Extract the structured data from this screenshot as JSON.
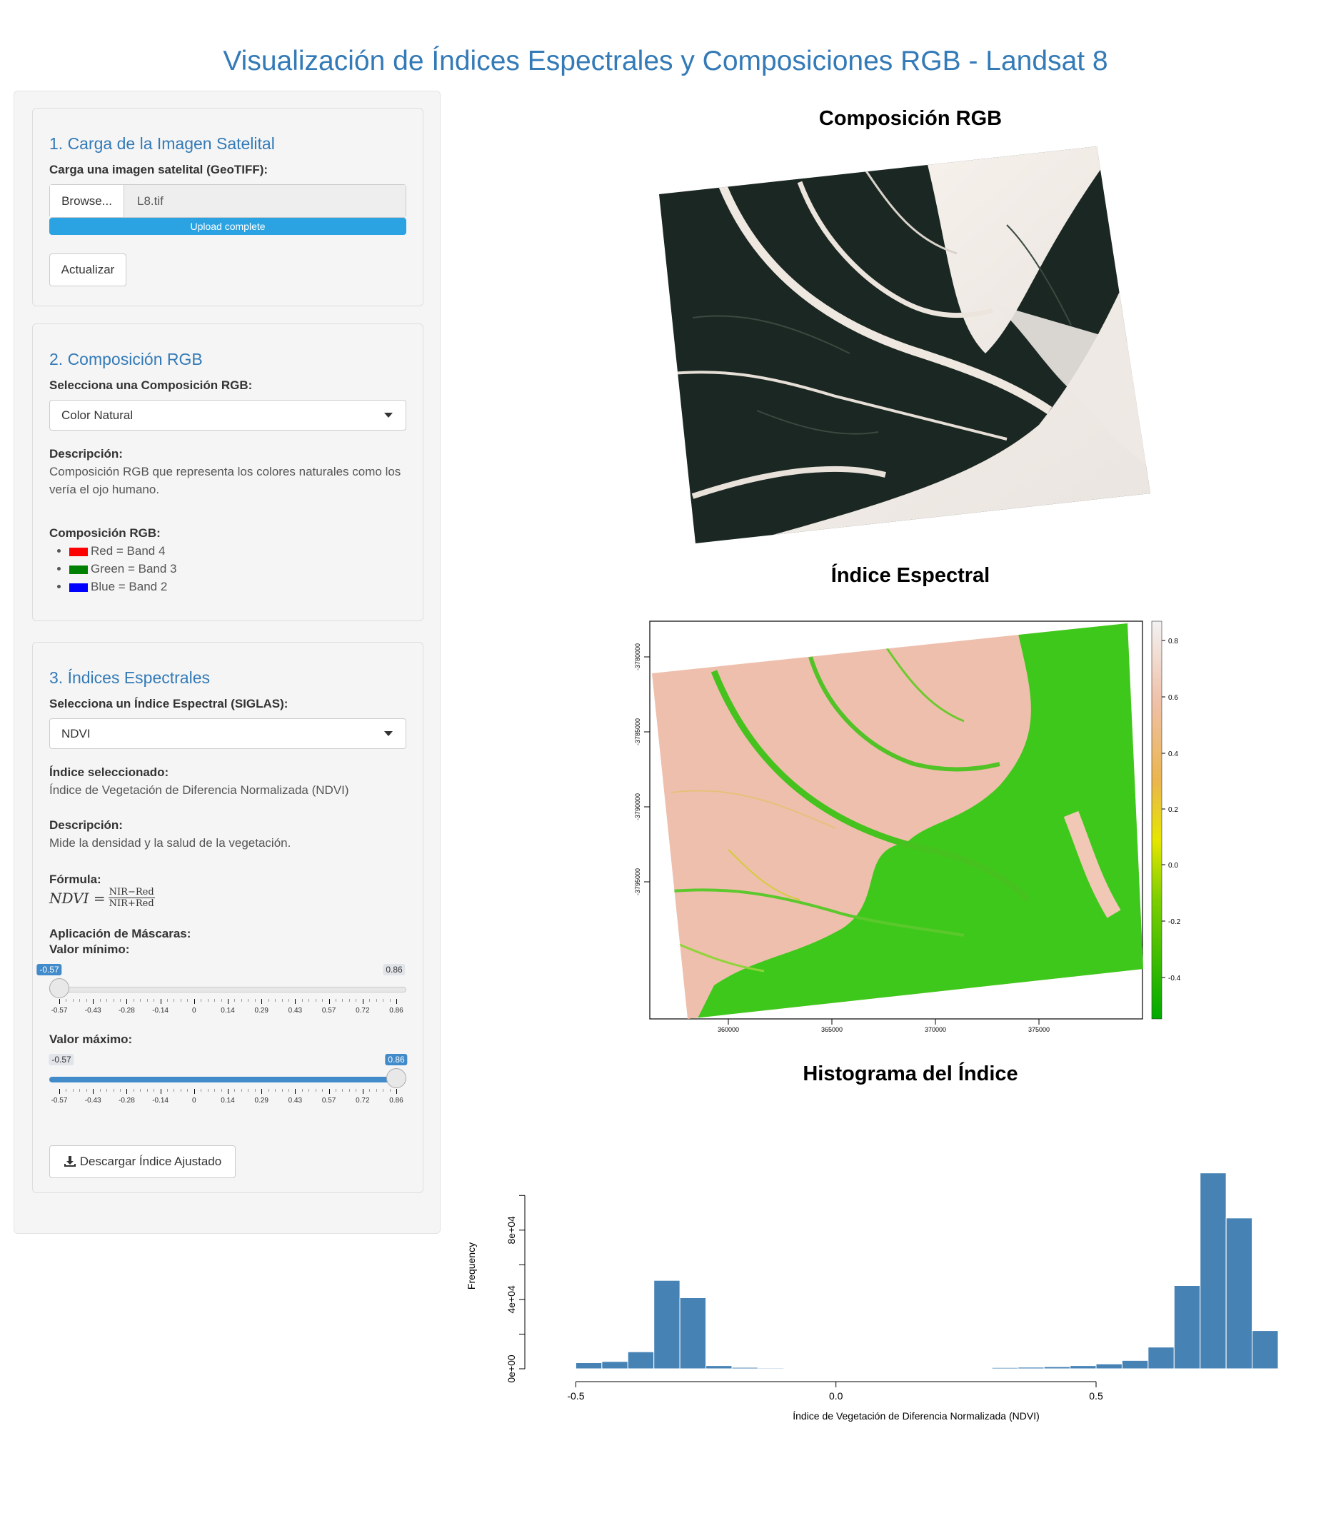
{
  "app": {
    "title": "Visualización de Índices Espectrales y Composiciones RGB - Landsat 8"
  },
  "panel1": {
    "heading": "1. Carga de la Imagen Satelital",
    "file_label": "Carga una imagen satelital (GeoTIFF):",
    "browse_label": "Browse...",
    "file_name": "L8.tif",
    "progress_text": "Upload complete",
    "progress_value": 1.0,
    "update_label": "Actualizar"
  },
  "panel2": {
    "heading": "2. Composición RGB",
    "select_label": "Selecciona una Composición RGB:",
    "selected": "Color Natural",
    "desc_label": "Descripción:",
    "desc_text": "Composición RGB que representa los colores naturales como los vería el ojo humano.",
    "comp_label": "Composición RGB:",
    "bands": [
      {
        "label": "Red = Band 4",
        "color": "#ff0000"
      },
      {
        "label": "Green = Band 3",
        "color": "#008000"
      },
      {
        "label": "Blue = Band 2",
        "color": "#0000ff"
      }
    ]
  },
  "panel3": {
    "heading": "3. Índices Espectrales",
    "select_label": "Selecciona un Índice Espectral (SIGLAS):",
    "selected": "NDVI",
    "index_label": "Índice seleccionado:",
    "index_name": "Índice de Vegetación de Diferencia Normalizada (NDVI)",
    "desc_label": "Descripción:",
    "desc_text": "Mide la densidad y la salud de la vegetación.",
    "formula_label": "Fórmula:",
    "formula_lhs": "NDVI =",
    "formula_num": "NIR−Red",
    "formula_den": "NIR+Red",
    "mask_label": "Aplicación de Máscaras:",
    "min_label": "Valor mínimo:",
    "max_label": "Valor máximo:",
    "slider_min": -0.57,
    "slider_max": 0.86,
    "min_value": -0.57,
    "max_value": 0.86,
    "min_value_text": "-0.57",
    "max_value_text": "0.86",
    "min_bound_text": "-0.57",
    "max_bound_text": "0.86",
    "ticks": [
      "-0.57",
      "-0.43",
      "-0.28",
      "-0.14",
      "0",
      "0.14",
      "0.29",
      "0.43",
      "0.57",
      "0.72",
      "0.86"
    ],
    "download_label": "Descargar Índice Ajustado"
  },
  "plots": {
    "rgb_title": "Composición RGB",
    "index_title": "Índice Espectral",
    "hist_title": "Histograma del Índice"
  },
  "index_map": {
    "y_ticks": [
      "-3780000",
      "-3785000",
      "-3790000",
      "-3795000"
    ],
    "x_ticks": [
      "360000",
      "365000",
      "370000",
      "375000"
    ],
    "legend_ticks": [
      "0.8",
      "0.6",
      "0.4",
      "0.2",
      "0.0",
      "-0.2",
      "-0.4"
    ],
    "colors": {
      "low": "#00b000",
      "mid": "#e6e600",
      "high": "#f5f5f5"
    }
  },
  "chart_data": {
    "type": "bar",
    "title": "",
    "xlabel": "Índice de Vegetación de Diferencia Normalizada (NDVI)",
    "ylabel": "Frequency",
    "x_ticks": [
      "-0.5",
      "0.0",
      "0.5"
    ],
    "y_ticks": [
      "0e+00",
      "4e+04",
      "8e+04"
    ],
    "xlim": [
      -0.55,
      0.85
    ],
    "ylim": [
      0,
      110000
    ],
    "bin_width": 0.05,
    "bin_starts": [
      -0.55,
      -0.5,
      -0.45,
      -0.4,
      -0.35,
      -0.3,
      -0.25,
      -0.2,
      -0.15,
      -0.1,
      -0.05,
      0.0,
      0.05,
      0.1,
      0.15,
      0.2,
      0.25,
      0.3,
      0.35,
      0.4,
      0.45,
      0.5,
      0.55,
      0.6,
      0.65,
      0.7,
      0.75,
      0.8
    ],
    "values": [
      200,
      3500,
      4200,
      9800,
      51000,
      41000,
      1800,
      800,
      500,
      300,
      200,
      200,
      200,
      200,
      200,
      300,
      400,
      700,
      900,
      1200,
      1800,
      2800,
      4800,
      12500,
      48000,
      113000,
      87000,
      22000
    ],
    "color": "#4682b4"
  }
}
